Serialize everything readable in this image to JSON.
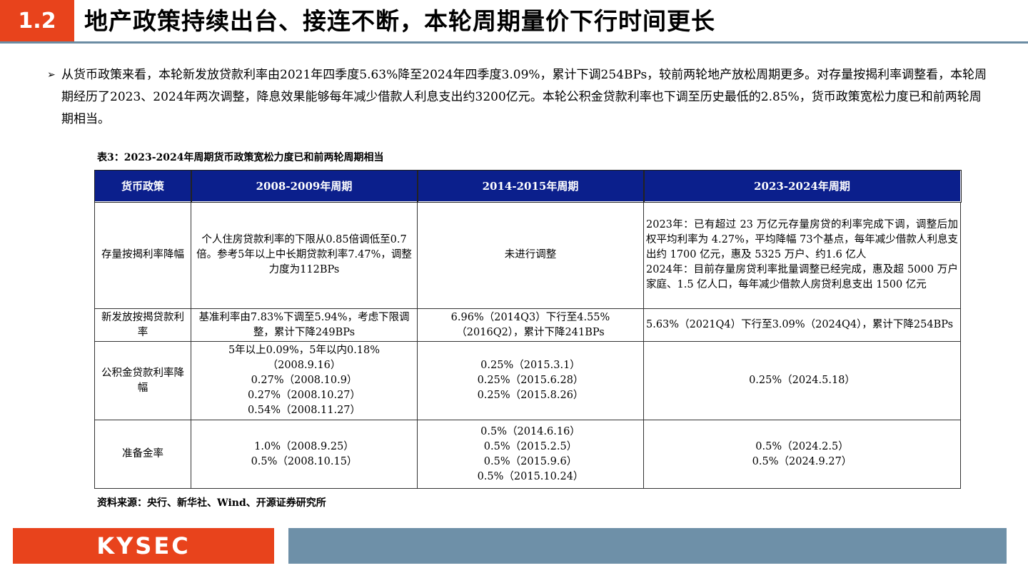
{
  "header": {
    "section_number": "1.2",
    "title": "地产政策持续出台、接连不断，本轮周期量价下行时间更长"
  },
  "paragraph": {
    "bullet": "➢",
    "text": "从货币政策来看，本轮新发放贷款利率由2021年四季度5.63%降至2024年四季度3.09%，累计下调254BPs，较前两轮地产放松周期更多。对存量按揭利率调整看，本轮周期经历了2023、2024年两次调整，降息效果能够每年减少借款人利息支出约3200亿元。本轮公积金贷款利率也下调至历史最低的2.85%，货币政策宽松力度已和前两轮周期相当。"
  },
  "table": {
    "caption": "表3：2023-2024年周期货币政策宽松力度已和前两轮周期相当",
    "headers": [
      "货币政策",
      "2008-2009年周期",
      "2014-2015年周期",
      "2023-2024年周期"
    ],
    "rows": [
      {
        "label": "存量按揭利率降幅",
        "c1": "个人住房贷款利率的下限从0.85倍调低至0.7倍。参考5年以上中长期贷款利率7.47%，调整力度为112BPs",
        "c2": "未进行调整",
        "c3": "2023年：已有超过 23 万亿元存量房贷的利率完成下调，调整后加权平均利率为 4.27%，平均降幅 73个基点，每年减少借款人利息支出约 1700 亿元，惠及 5325 万户、约1.6 亿人\n2024年：目前存量房贷利率批量调整已经完成，惠及超 5000 万户家庭、1.5 亿人口，每年减少借款人房贷利息支出 1500 亿元"
      },
      {
        "label": "新发放按揭贷款利率",
        "c1": "基准利率由7.83%下调至5.94%，考虑下限调整，累计下降249BPs",
        "c2": [
          "6.96%（2014Q3）下行至4.55%",
          "（2016Q2），累计下降241BPs"
        ],
        "c3": "5.63%（2021Q4）下行至3.09%（2024Q4），累计下降254BPs"
      },
      {
        "label": "公积金贷款利率降幅",
        "c1": [
          "5年以上0.09%，5年以内0.18%",
          "（2008.9.16）",
          "0.27%（2008.10.9）",
          "0.27%（2008.10.27）",
          "0.54%（2008.11.27）"
        ],
        "c2": [
          "0.25%（2015.3.1）",
          "0.25%（2015.6.28）",
          "0.25%（2015.8.26）"
        ],
        "c3": [
          "0.25%（2024.5.18）"
        ]
      },
      {
        "label": "准备金率",
        "c1": [
          "1.0%（2008.9.25）",
          "0.5%（2008.10.15）"
        ],
        "c2": [
          "0.5%（2014.6.16）",
          "0.5%（2015.2.5）",
          "0.5%（2015.9.6）",
          "0.5%（2015.10.24）"
        ],
        "c3": [
          "0.5%（2024.2.5）",
          "0.5%（2024.9.27）"
        ]
      }
    ],
    "source": "资料来源：央行、新华社、Wind、开源证券研究所"
  },
  "footer": {
    "logo_text": "KYSEC"
  }
}
